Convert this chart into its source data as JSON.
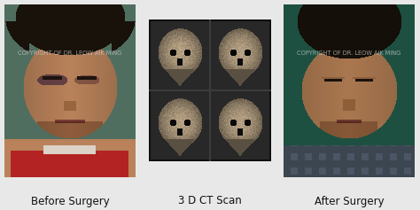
{
  "bg_color": "#e8e8e8",
  "labels": [
    "Before Surgery",
    "3 D CT Scan",
    "After Surgery"
  ],
  "label_fontsize": 8.5,
  "label_color": "#111111",
  "copyright_text": "COPYRIGHT OF DR. LEOW AIK MING",
  "copyright_fontsize": 4.8,
  "copyright_color": "#cccccc",
  "figsize": [
    4.74,
    2.37
  ],
  "dpi": 100,
  "panel1_bg": [
    80,
    110,
    95
  ],
  "panel1_face": [
    185,
    130,
    90
  ],
  "panel1_hair": [
    25,
    18,
    10
  ],
  "panel1_shirt": [
    180,
    35,
    35
  ],
  "panel1_bruise_l": [
    55,
    30,
    55
  ],
  "panel1_bruise_r": [
    90,
    50,
    50
  ],
  "panel3_bg": [
    30,
    80,
    65
  ],
  "panel3_face": [
    170,
    120,
    80
  ],
  "panel3_hair": [
    20,
    15,
    8
  ],
  "panel3_shirt": [
    75,
    85,
    100
  ],
  "ct_bg": [
    15,
    15,
    15
  ],
  "ct_skull": [
    180,
    160,
    130
  ],
  "ct_dark": [
    40,
    40,
    40
  ]
}
